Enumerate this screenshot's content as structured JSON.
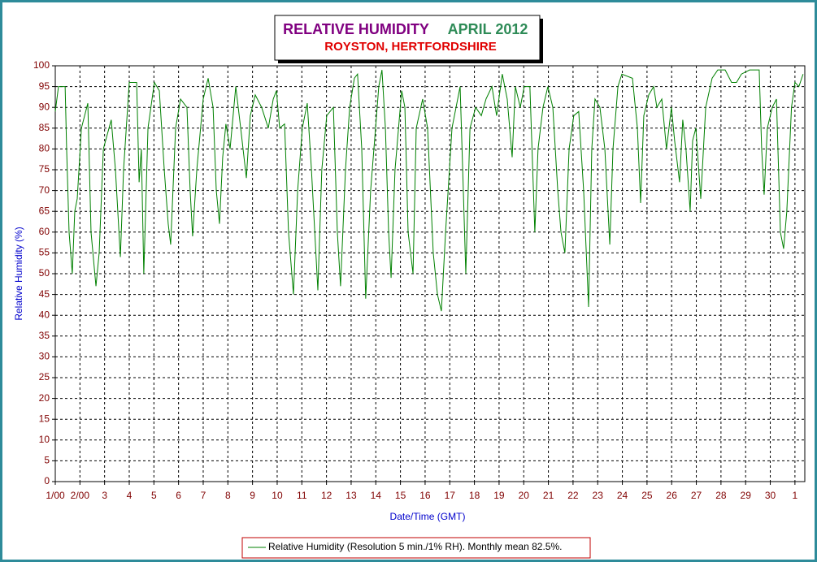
{
  "chart_data": {
    "type": "line",
    "title": "RELATIVE HUMIDITY",
    "title_period": "APRIL 2012",
    "subtitle": "ROYSTON, HERTFORDSHIRE",
    "x_label": "Date/Time (GMT)",
    "y_label": "Relative Humidity (%)",
    "xlim": [
      0,
      30.4
    ],
    "ylim": [
      0,
      100
    ],
    "xticks": [
      {
        "value": 0,
        "label": "1/00"
      },
      {
        "value": 1,
        "label": "2/00"
      },
      {
        "value": 2,
        "label": "3"
      },
      {
        "value": 3,
        "label": "4"
      },
      {
        "value": 4,
        "label": "5"
      },
      {
        "value": 5,
        "label": "6"
      },
      {
        "value": 6,
        "label": "7"
      },
      {
        "value": 7,
        "label": "8"
      },
      {
        "value": 8,
        "label": "9"
      },
      {
        "value": 9,
        "label": "10"
      },
      {
        "value": 10,
        "label": "11"
      },
      {
        "value": 11,
        "label": "12"
      },
      {
        "value": 12,
        "label": "13"
      },
      {
        "value": 13,
        "label": "14"
      },
      {
        "value": 14,
        "label": "15"
      },
      {
        "value": 15,
        "label": "16"
      },
      {
        "value": 16,
        "label": "17"
      },
      {
        "value": 17,
        "label": "18"
      },
      {
        "value": 18,
        "label": "19"
      },
      {
        "value": 19,
        "label": "20"
      },
      {
        "value": 20,
        "label": "21"
      },
      {
        "value": 21,
        "label": "22"
      },
      {
        "value": 22,
        "label": "23"
      },
      {
        "value": 23,
        "label": "24"
      },
      {
        "value": 24,
        "label": "25"
      },
      {
        "value": 25,
        "label": "26"
      },
      {
        "value": 26,
        "label": "27"
      },
      {
        "value": 27,
        "label": "28"
      },
      {
        "value": 28,
        "label": "29"
      },
      {
        "value": 29,
        "label": "30"
      },
      {
        "value": 30,
        "label": "1"
      }
    ],
    "yticks": [
      0,
      5,
      10,
      15,
      20,
      25,
      30,
      35,
      40,
      45,
      50,
      55,
      60,
      65,
      70,
      75,
      80,
      85,
      90,
      95,
      100
    ],
    "grid": true,
    "legend": "bottom",
    "x": [
      0,
      0.13,
      0.4,
      0.46,
      0.56,
      0.69,
      0.79,
      0.89,
      1.06,
      1.32,
      1.45,
      1.65,
      1.78,
      1.95,
      2.27,
      2.44,
      2.64,
      2.77,
      3.0,
      3.3,
      3.4,
      3.49,
      3.59,
      3.76,
      4.02,
      4.22,
      4.42,
      4.58,
      4.68,
      4.88,
      5.08,
      5.34,
      5.47,
      5.57,
      5.74,
      6.0,
      6.2,
      6.4,
      6.53,
      6.66,
      6.79,
      6.92,
      7.09,
      7.32,
      7.52,
      7.75,
      7.91,
      8.11,
      8.37,
      8.64,
      8.84,
      8.97,
      9.1,
      9.3,
      9.46,
      9.66,
      9.83,
      10.02,
      10.22,
      10.39,
      10.65,
      10.81,
      11.01,
      11.28,
      11.44,
      11.57,
      11.77,
      11.94,
      12.13,
      12.26,
      12.43,
      12.59,
      12.79,
      12.99,
      13.12,
      13.25,
      13.39,
      13.52,
      13.62,
      13.78,
      14.05,
      14.18,
      14.31,
      14.51,
      14.64,
      14.9,
      15.1,
      15.33,
      15.5,
      15.66,
      15.83,
      16.09,
      16.42,
      16.55,
      16.65,
      16.82,
      17.05,
      17.28,
      17.47,
      17.71,
      17.9,
      18.13,
      18.33,
      18.53,
      18.66,
      18.86,
      19.02,
      19.25,
      19.45,
      19.58,
      19.78,
      19.98,
      20.18,
      20.38,
      20.51,
      20.67,
      20.84,
      21.03,
      21.23,
      21.43,
      21.63,
      21.76,
      21.89,
      22.09,
      22.29,
      22.49,
      22.62,
      22.82,
      22.98,
      23.41,
      23.61,
      23.74,
      23.87,
      24.07,
      24.27,
      24.4,
      24.6,
      24.79,
      24.99,
      25.12,
      25.32,
      25.45,
      25.58,
      25.75,
      25.85,
      25.98,
      26.18,
      26.38,
      26.64,
      26.87,
      27.17,
      27.43,
      27.63,
      27.83,
      28.16,
      28.55,
      28.65,
      28.75,
      28.88,
      29.08,
      29.25,
      29.41,
      29.54,
      29.67,
      29.86,
      30.0,
      30.16,
      30.33
    ],
    "series": [
      {
        "name": "Relative Humidity (Resolution 5 min./1% RH). Monthly mean 82.5%.",
        "color": "#008000",
        "values": [
          89,
          95,
          95,
          80,
          60,
          50,
          65,
          68,
          85,
          91,
          60,
          47,
          55,
          80,
          87,
          75,
          54,
          75,
          96,
          96,
          72,
          80,
          50,
          85,
          96,
          94,
          75,
          62,
          57,
          85,
          92,
          90,
          70,
          59,
          75,
          92,
          97,
          90,
          70,
          62,
          78,
          86,
          80,
          95,
          85,
          73,
          88,
          93,
          90,
          85,
          92,
          94,
          85,
          86,
          60,
          45,
          70,
          85,
          91,
          75,
          46,
          75,
          88,
          90,
          60,
          47,
          75,
          90,
          97,
          98,
          80,
          44,
          70,
          85,
          95,
          99,
          85,
          60,
          49,
          75,
          94,
          90,
          60,
          50,
          85,
          92,
          85,
          55,
          45,
          41,
          60,
          85,
          95,
          70,
          50,
          85,
          90,
          88,
          92,
          95,
          88,
          98,
          92,
          78,
          95,
          90,
          95,
          95,
          60,
          80,
          90,
          95,
          90,
          70,
          60,
          55,
          80,
          88,
          89,
          70,
          42,
          80,
          92,
          90,
          80,
          57,
          80,
          95,
          98,
          97,
          85,
          67,
          88,
          93,
          95,
          90,
          92,
          80,
          90,
          82,
          72,
          87,
          80,
          65,
          82,
          85,
          68,
          90,
          97,
          99,
          99,
          96,
          96,
          98,
          99,
          99,
          80,
          69,
          85,
          90,
          92,
          60,
          56,
          65,
          90,
          96,
          95,
          98
        ]
      }
    ]
  }
}
